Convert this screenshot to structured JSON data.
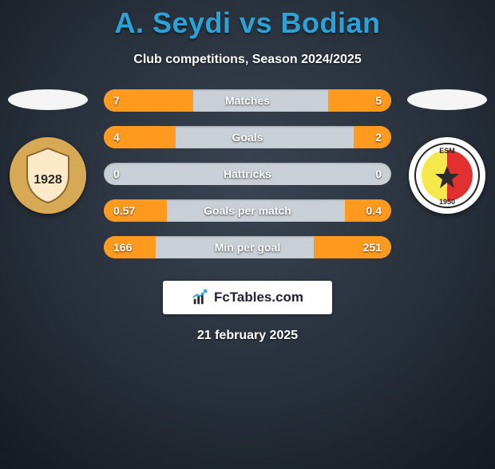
{
  "header": {
    "title": "A. Seydi vs Bodian",
    "title_color": "#2aa3d9",
    "subtitle": "Club competitions, Season 2024/2025"
  },
  "left_team": {
    "flag_bg": "#f5f5f5",
    "badge_bg": "#d7a955",
    "badge_inner": "#fbe9c8",
    "badge_text": "1928",
    "badge_text_color": "#2a2a2a"
  },
  "right_team": {
    "flag_bg": "#f5f5f5",
    "badge_bg": "#ffffff",
    "tri_left": "#f5e84a",
    "tri_right": "#e22f2f",
    "star_color": "#2b2b2b",
    "badge_arc_text": "ESM",
    "year": "1950"
  },
  "stats": {
    "bar_color": "#ff9a1f",
    "track_color": "#c9cfd6",
    "rows": [
      {
        "label": "Matches",
        "left_val": "7",
        "right_val": "5",
        "left_pct": 31,
        "right_pct": 22
      },
      {
        "label": "Goals",
        "left_val": "4",
        "right_val": "2",
        "left_pct": 25,
        "right_pct": 13
      },
      {
        "label": "Hattricks",
        "left_val": "0",
        "right_val": "0",
        "left_pct": 0,
        "right_pct": 0
      },
      {
        "label": "Goals per match",
        "left_val": "0.57",
        "right_val": "0.4",
        "left_pct": 22,
        "right_pct": 16
      },
      {
        "label": "Min per goal",
        "left_val": "166",
        "right_val": "251",
        "left_pct": 18,
        "right_pct": 27
      }
    ]
  },
  "footer": {
    "brand": "FcTables.com",
    "date": "21 february 2025"
  }
}
